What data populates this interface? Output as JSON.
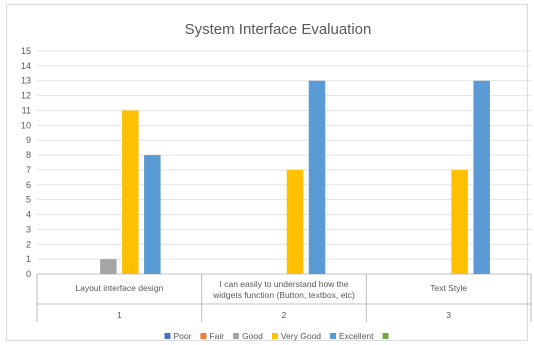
{
  "chart_data": {
    "type": "bar",
    "title": "System Interface Evaluation",
    "xlabel": "",
    "ylabel": "",
    "ylim": [
      0,
      15
    ],
    "y_ticks": [
      0,
      1,
      2,
      3,
      4,
      5,
      6,
      7,
      8,
      9,
      10,
      11,
      12,
      13,
      14,
      15
    ],
    "grid": true,
    "legend_position": "bottom",
    "categories": [
      {
        "name_lines": [
          "Layout interface design"
        ],
        "number": "1"
      },
      {
        "name_lines": [
          "I can easily to understand how the",
          "widgets function (Button, textbox, etc)"
        ],
        "number": "2"
      },
      {
        "name_lines": [
          "Text Style"
        ],
        "number": "3"
      }
    ],
    "series": [
      {
        "name": "Poor",
        "color": "#4472c4",
        "values": [
          0,
          0,
          0
        ]
      },
      {
        "name": "Fair",
        "color": "#ed7d31",
        "values": [
          0,
          0,
          0
        ]
      },
      {
        "name": "Good",
        "color": "#a5a5a5",
        "values": [
          1,
          0,
          0
        ]
      },
      {
        "name": "Very Good",
        "color": "#ffc000",
        "values": [
          11,
          7,
          7
        ]
      },
      {
        "name": "Excellent",
        "color": "#5b9bd5",
        "values": [
          8,
          13,
          13
        ]
      },
      {
        "name": "",
        "color": "#70ad47",
        "values": [
          0,
          0,
          0
        ]
      }
    ]
  }
}
